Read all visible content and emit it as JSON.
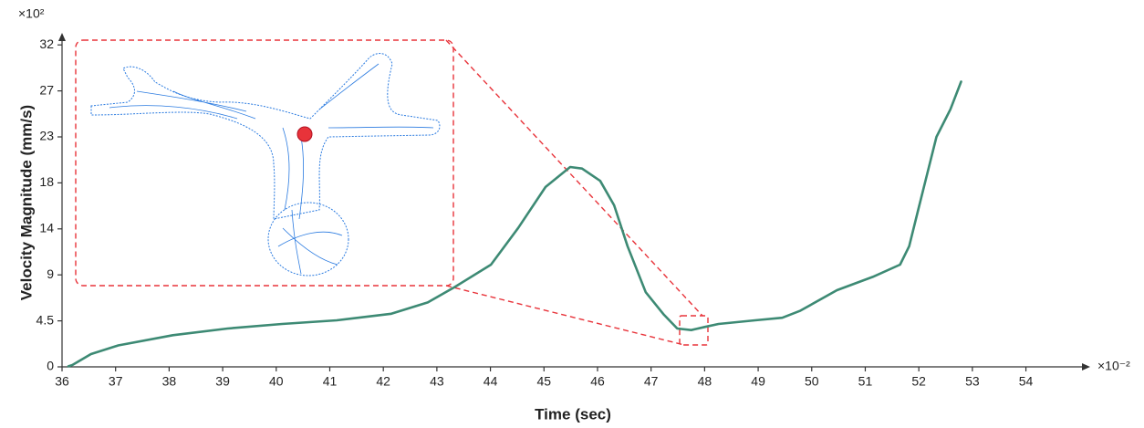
{
  "chart_data": {
    "type": "line",
    "y_label": "Velocity Magnitude (mm/s)",
    "x_label": "Time (sec)",
    "y_multiplier": "×10²",
    "x_multiplier": "×10⁻²",
    "color": "#3d8a74",
    "x": [
      36.12,
      36.2,
      36.54,
      37.05,
      38.07,
      39.09,
      40.11,
      41.13,
      42.15,
      42.83,
      43.33,
      44.01,
      44.52,
      45.03,
      45.49,
      45.71,
      46.05,
      46.31,
      46.56,
      46.9,
      47.24,
      47.49,
      47.75,
      48.0,
      48.26,
      48.94,
      49.45,
      49.79,
      50.47,
      51.14,
      51.65,
      51.82,
      51.99,
      52.33,
      52.59,
      52.79
    ],
    "values": [
      0.05,
      0.2,
      1.25,
      2.1,
      3.1,
      3.75,
      4.2,
      4.55,
      5.2,
      6.3,
      7.8,
      10.0,
      13.6,
      17.6,
      19.55,
      19.4,
      18.2,
      15.8,
      11.8,
      7.3,
      5.1,
      3.75,
      3.6,
      3.9,
      4.2,
      4.55,
      4.8,
      5.5,
      7.5,
      8.8,
      10.0,
      11.8,
      15.4,
      22.5,
      25.2,
      27.9
    ],
    "xlim": [
      36,
      55.2
    ],
    "ylim": [
      0,
      32.5
    ],
    "xticks": [
      36,
      37,
      38,
      39,
      40,
      41,
      42,
      43,
      44,
      45,
      46,
      47,
      48,
      49,
      50,
      51,
      52,
      53,
      54
    ],
    "yticks": [
      0,
      4.5,
      9,
      {
        "value": 13.5,
        "label": "14"
      },
      18,
      {
        "value": 22.5,
        "label": "23"
      },
      27,
      {
        "value": 31.5,
        "label": "32"
      }
    ]
  }
}
